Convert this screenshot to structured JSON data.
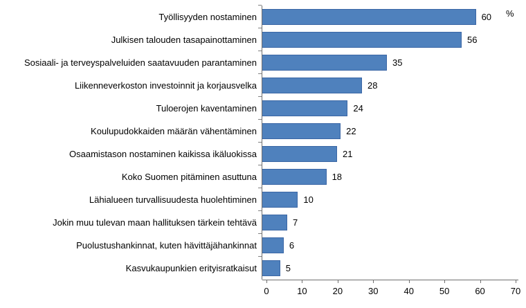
{
  "chart_data": {
    "type": "bar",
    "orientation": "horizontal",
    "title": "",
    "unit_label": "%",
    "categories": [
      "Työllisyyden nostaminen",
      "Julkisen talouden tasapainottaminen",
      "Sosiaali- ja terveyspalveluiden saatavuuden parantaminen",
      "Liikenneverkoston investoinnit ja korjausvelka",
      "Tuloerojen kaventaminen",
      "Koulupudokkaiden määrän vähentäminen",
      "Osaamistason nostaminen kaikissa ikäluokissa",
      "Koko Suomen pitäminen asuttuna",
      "Lähialueen turvallisuudesta huolehtiminen",
      "Jokin muu tulevan maan hallituksen tärkein tehtävä",
      "Puolustushankinnat, kuten hävittäjähankinnat",
      "Kasvukaupunkien erityisratkaisut"
    ],
    "values": [
      60,
      56,
      35,
      28,
      24,
      22,
      21,
      18,
      10,
      7,
      6,
      5
    ],
    "xlim": [
      0,
      70
    ],
    "x_ticks": [
      0,
      10,
      20,
      30,
      40,
      50,
      60,
      70
    ],
    "data_labels_shown": true,
    "grid": "off",
    "legend": "none",
    "bar_color": "#4F81BD",
    "bar_border_color": "#3A66A5",
    "axis_color": "#6f6f6f"
  }
}
